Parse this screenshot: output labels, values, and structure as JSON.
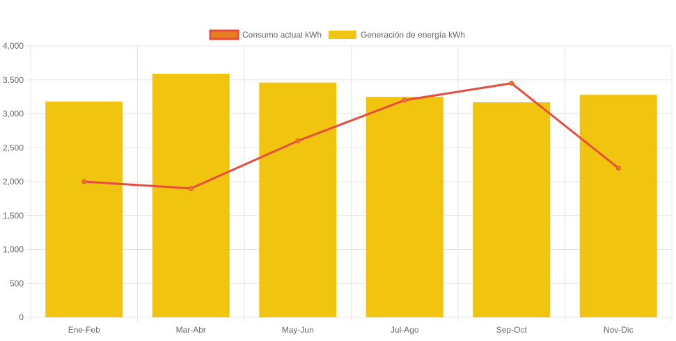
{
  "colors": {
    "bar_fill": "#f1c40f",
    "line_color": "#e74c3c",
    "line_fill": "#e67e22",
    "grid": "#e5e5e5",
    "axis_text": "#666666"
  },
  "chart_data": {
    "type": "bar",
    "categories": [
      "Ene-Feb",
      "Mar-Abr",
      "May-Jun",
      "Jul-Ago",
      "Sep-Oct",
      "Nov-Dic"
    ],
    "series": [
      {
        "name": "Consumo actual kWh",
        "type": "line",
        "values": [
          2000,
          1900,
          2600,
          3200,
          3450,
          2200
        ]
      },
      {
        "name": "Generación de energía kWh",
        "type": "bar",
        "values": [
          3180,
          3590,
          3460,
          3250,
          3170,
          3280
        ]
      }
    ],
    "y_ticks": [
      "0",
      "500",
      "1,000",
      "1,500",
      "2,000",
      "2,500",
      "3,000",
      "3,500",
      "4,000"
    ],
    "ylim": [
      0,
      4000
    ],
    "grid": true,
    "legend": "top-center"
  }
}
